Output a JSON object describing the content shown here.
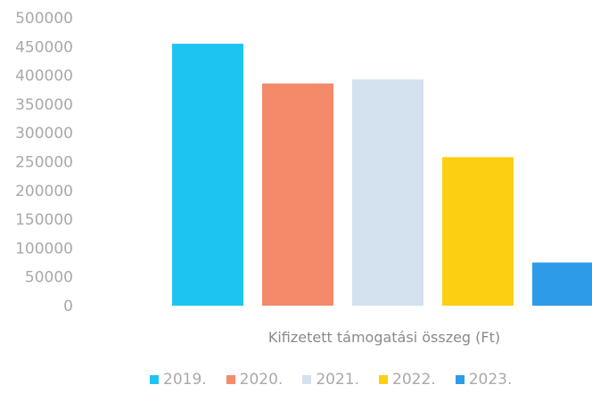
{
  "chart_data": {
    "type": "bar",
    "categories": [
      "2019.",
      "2020.",
      "2021.",
      "2022.",
      "2023."
    ],
    "values": [
      455000,
      386000,
      393000,
      258000,
      75000
    ],
    "colors": [
      "#1ec4f1",
      "#f48a6a",
      "#d4e1ee",
      "#fdcf12",
      "#2e9be9"
    ],
    "xlabel": "Kifizetett támogatási összeg (Ft)",
    "ylabel": "",
    "ylim": [
      0,
      500000
    ],
    "yticks": [
      "500000",
      "450000",
      "400000",
      "350000",
      "300000",
      "250000",
      "200000",
      "150000",
      "100000",
      "50000",
      "0"
    ],
    "grid": false,
    "legend_position": "bottom"
  }
}
